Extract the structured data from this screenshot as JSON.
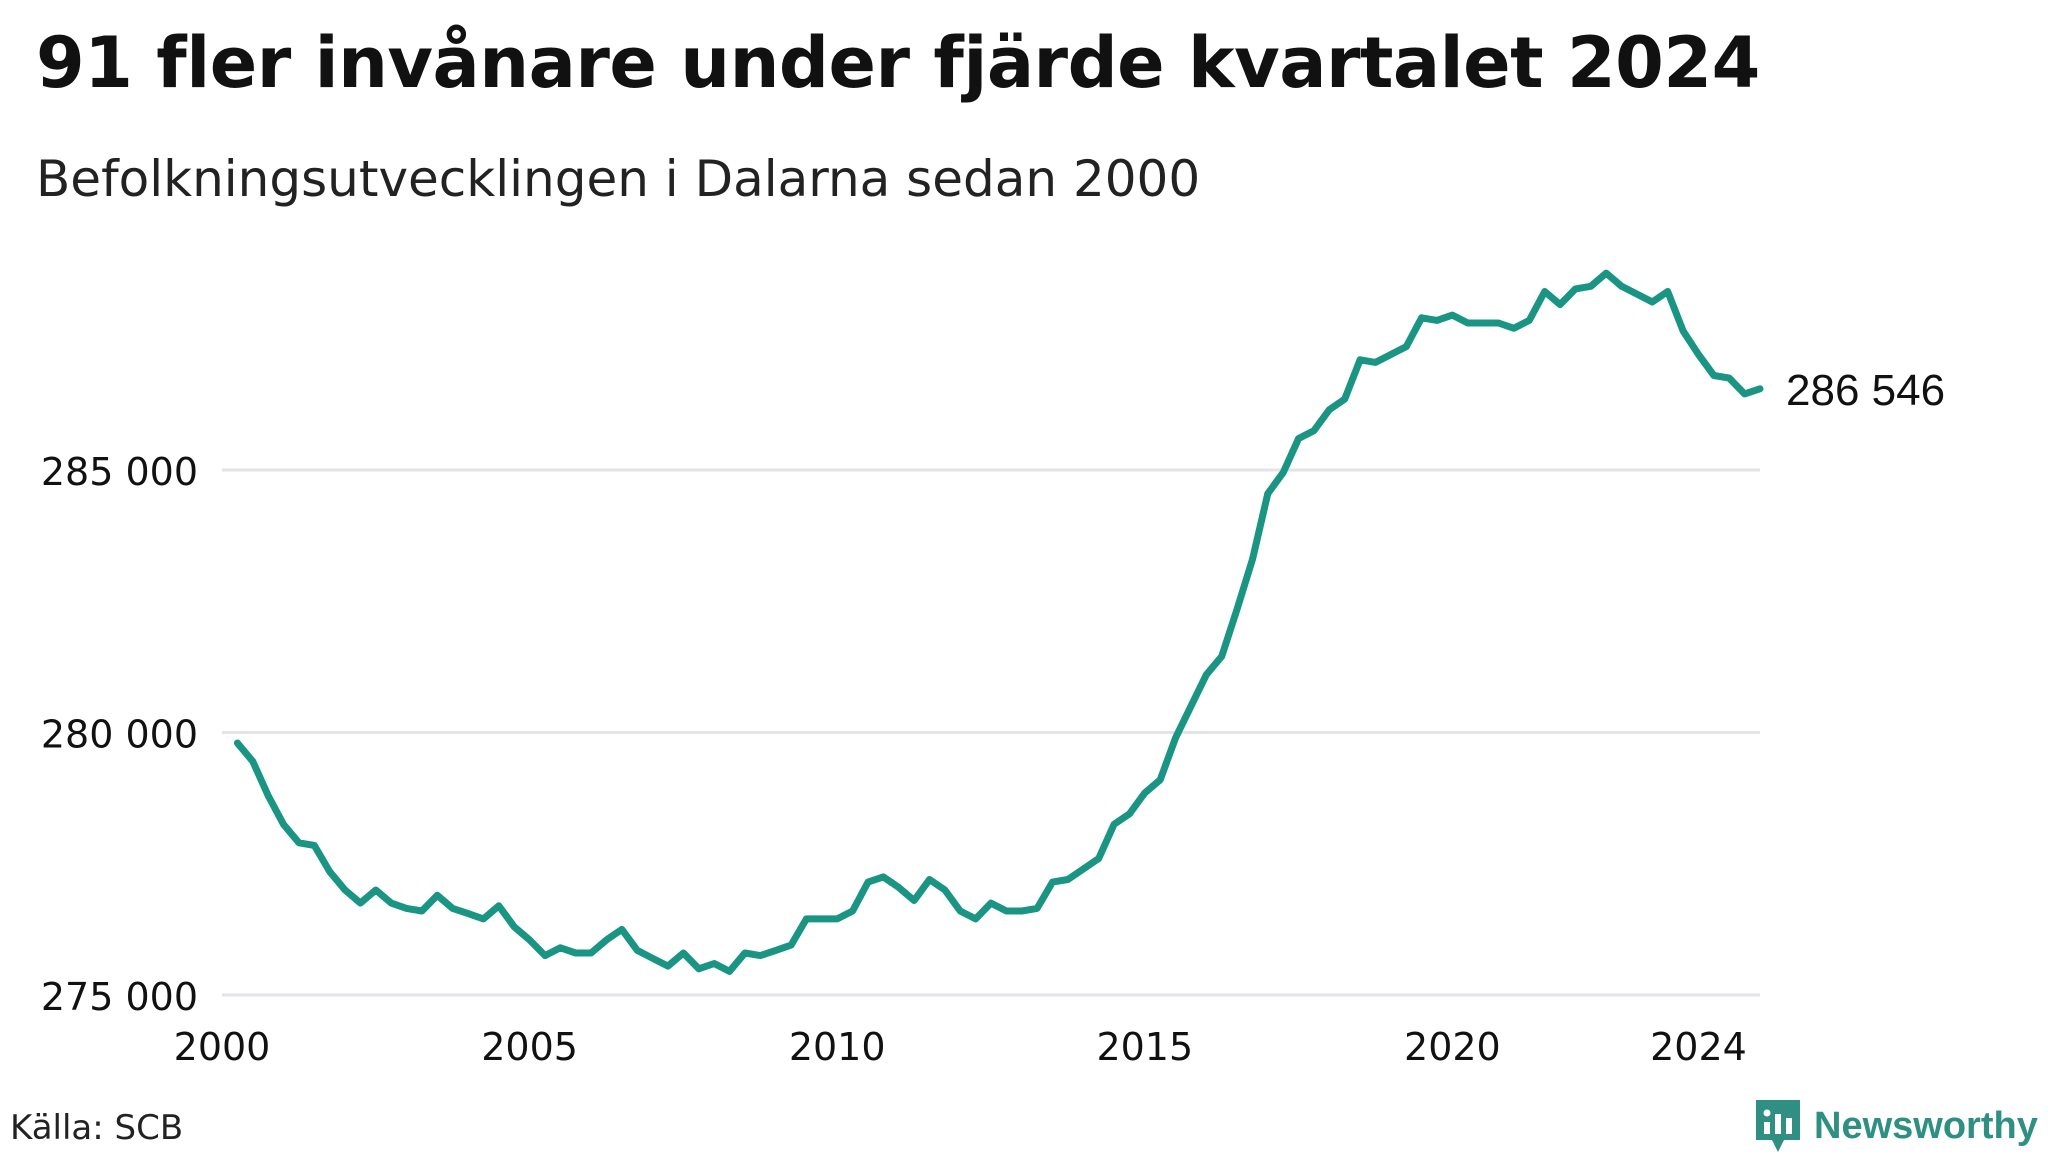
{
  "title": "91 fler invånare under fjärde kvartalet 2024",
  "subtitle": "Befolkningsutvecklingen i Dalarna sedan 2000",
  "source": "Källa: SCB",
  "brand": {
    "name": "Newsworthy",
    "icon": "newsworthy-logo-icon"
  },
  "colors": {
    "line": "#1a9583",
    "grid": "#e3e3e8",
    "text": "#111111",
    "brand": "#2f8f83"
  },
  "chart_data": {
    "type": "line",
    "title": "91 fler invånare under fjärde kvartalet 2024",
    "subtitle": "Befolkningsutvecklingen i Dalarna sedan 2000",
    "xlabel": "",
    "ylabel": "",
    "x_ticks": [
      2000,
      2005,
      2010,
      2015,
      2020,
      2024
    ],
    "y_ticks": [
      275000,
      280000,
      285000
    ],
    "y_tick_labels": [
      "275 000",
      "280 000",
      "285 000"
    ],
    "xlim": [
      2000,
      2025
    ],
    "ylim": [
      275000,
      289000
    ],
    "grid": "horizontal",
    "end_label": "286 546",
    "series": [
      {
        "x": [
          2000.25,
          2000.5,
          2000.75,
          2001.0,
          2001.25,
          2001.5,
          2001.75,
          2002.0,
          2002.25,
          2002.5,
          2002.75,
          2003.0,
          2003.25,
          2003.5,
          2003.75,
          2004.0,
          2004.25,
          2004.5,
          2004.75,
          2005.0,
          2005.25,
          2005.5,
          2005.75,
          2006.0,
          2006.25,
          2006.5,
          2006.75,
          2007.0,
          2007.25,
          2007.5,
          2007.75,
          2008.0,
          2008.25,
          2008.5,
          2008.75,
          2009.0,
          2009.25,
          2009.5,
          2009.75,
          2010.0,
          2010.25,
          2010.5,
          2010.75,
          2011.0,
          2011.25,
          2011.5,
          2011.75,
          2012.0,
          2012.25,
          2012.5,
          2012.75,
          2013.0,
          2013.25,
          2013.5,
          2013.75,
          2014.0,
          2014.25,
          2014.5,
          2014.75,
          2015.0,
          2015.25,
          2015.5,
          2015.75,
          2016.0,
          2016.25,
          2016.5,
          2016.75,
          2017.0,
          2017.25,
          2017.5,
          2017.75,
          2018.0,
          2018.25,
          2018.5,
          2018.75,
          2019.0,
          2019.25,
          2019.5,
          2019.75,
          2020.0,
          2020.25,
          2020.5,
          2020.75,
          2021.0,
          2021.25,
          2021.5,
          2021.75,
          2022.0,
          2022.25,
          2022.5,
          2022.75,
          2023.0,
          2023.25,
          2023.5,
          2023.75,
          2024.0,
          2024.25,
          2024.5,
          2024.75,
          2025.0
        ],
        "values": [
          279800,
          279450,
          278800,
          278250,
          277900,
          277850,
          277350,
          277000,
          276750,
          277000,
          276750,
          276650,
          276600,
          276900,
          276650,
          276550,
          276450,
          276700,
          276300,
          276050,
          275750,
          275900,
          275800,
          275800,
          276050,
          276250,
          275850,
          275700,
          275550,
          275800,
          275500,
          275600,
          275450,
          275800,
          275750,
          275850,
          275950,
          276450,
          276450,
          276450,
          276600,
          277150,
          277250,
          277050,
          276800,
          277200,
          277000,
          276600,
          276450,
          276750,
          276600,
          276600,
          276650,
          277150,
          277200,
          277400,
          277600,
          278250,
          278450,
          278850,
          279100,
          279900,
          280500,
          281100,
          281450,
          282350,
          283300,
          284550,
          284950,
          285600,
          285750,
          286150,
          286350,
          287100,
          287050,
          287200,
          287350,
          287900,
          287850,
          287950,
          287800,
          287800,
          287800,
          287700,
          287850,
          288400,
          288150,
          288450,
          288500,
          288750,
          288500,
          288350,
          288200,
          288400,
          287650,
          287200,
          286800,
          286750,
          286450,
          286546
        ]
      }
    ]
  }
}
